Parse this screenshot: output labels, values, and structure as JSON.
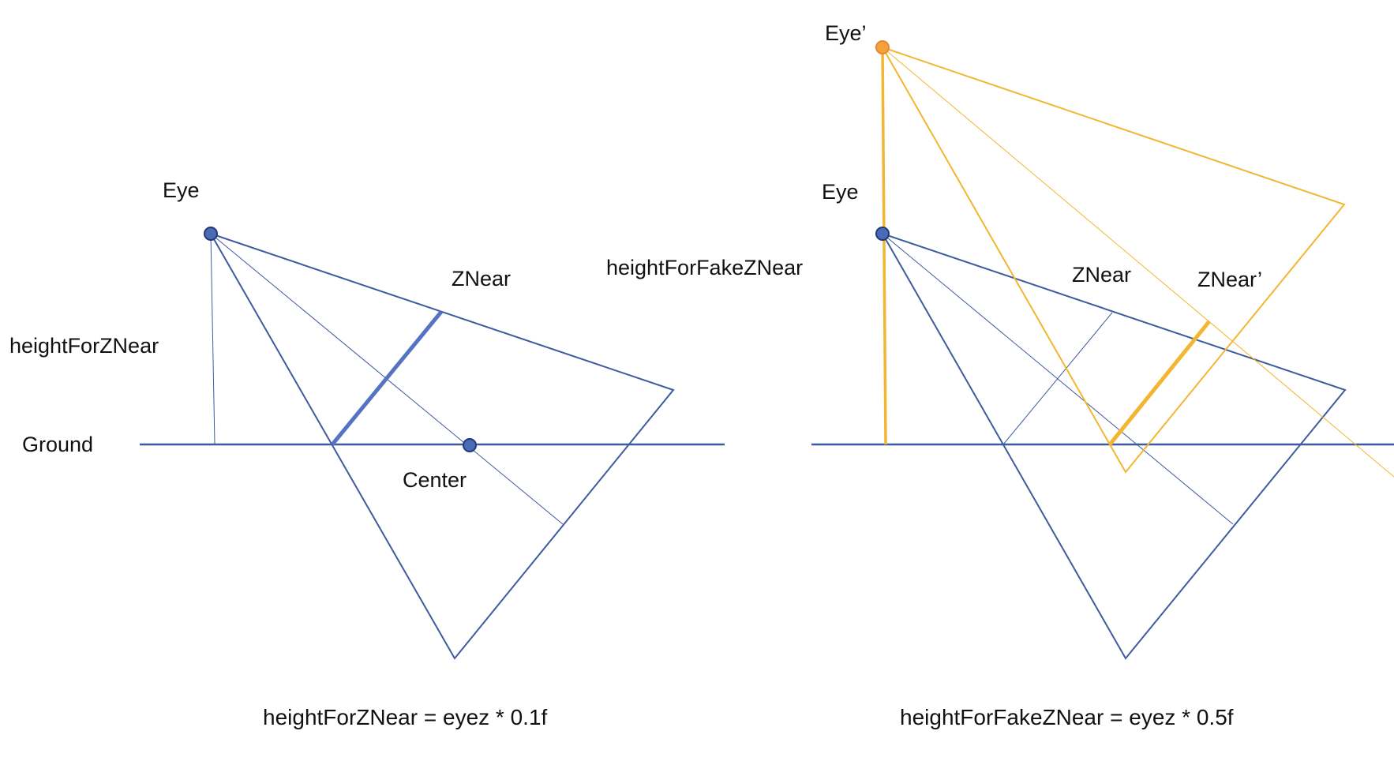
{
  "colors": {
    "blue": "#3d5b9e",
    "blue_dot": "#4a6bb5",
    "blue_thick": "#5573c2",
    "orange": "#f2b632",
    "orange_dot": "#f5a23a",
    "text": "#111111"
  },
  "left_panel": {
    "eye_label": "Eye",
    "znear_label": "ZNear",
    "height_label": "heightForZNear",
    "ground_label": "Ground",
    "center_label": "Center",
    "formula": "heightForZNear = eyez * 0.1f"
  },
  "right_panel": {
    "eye_label": "Eye",
    "fake_eye_label": "Eye’",
    "znear_label": "ZNear",
    "fake_znear_label": "ZNear’",
    "height_label": "heightForFakeZNear",
    "formula": "heightForFakeZNear = eyez * 0.5f"
  }
}
